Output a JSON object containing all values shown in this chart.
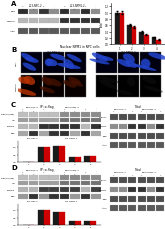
{
  "panel_A": {
    "bar_data": {
      "black_bars": [
        1.0,
        0.62,
        0.38,
        0.22
      ],
      "red_bars": [
        1.0,
        0.55,
        0.3,
        0.15
      ],
      "ylim": [
        0,
        1.3
      ],
      "ylabel": "Fold"
    },
    "wb_labels": [
      "Flag",
      "NPM1m",
      "Actin"
    ],
    "n_lanes": 8,
    "group1": "ZC3-NPC-2",
    "group2": "ZC3-NPM1-2"
  },
  "panel_B": {
    "title": "Nuclear NPM1 in NPC cells",
    "group1": "ZC3-NPC-2",
    "group2": "ZC3-NPM1-2",
    "n_cols": 3,
    "n_rows": 2
  },
  "panel_C": {
    "bar_data": {
      "black_bars": [
        0.05,
        1.0,
        1.1,
        0.38,
        0.42
      ],
      "red_bars": [
        0.05,
        1.0,
        1.1,
        0.38,
        0.42
      ],
      "ylim": [
        0,
        1.4
      ]
    },
    "wb_left_label": "IP: α-flag",
    "wb_right_label": "Total",
    "group1": "ZC3-NPC-2",
    "group2": "ZC3-NPM1-2",
    "left_wb_rows": [
      "DYRK1A(flag)",
      "IgG",
      "NPM1m",
      "Flag"
    ],
    "right_wb_rows": [
      "DYRK1A",
      "NPM1m",
      "Flag",
      "Actin"
    ]
  },
  "panel_D": {
    "bar_data": {
      "black_bars": [
        0.05,
        1.0,
        0.92,
        0.3,
        0.28
      ],
      "red_bars": [
        0.05,
        1.0,
        0.92,
        0.3,
        0.28
      ],
      "ylim": [
        0,
        1.4
      ]
    },
    "wb_left_label": "IP: α-flag",
    "wb_right_label": "Total",
    "group1": "ZC3-NPC-2",
    "group2": "ZC3-NPM1-2",
    "left_wb_rows": [
      "DYRK1A(flag)",
      "IgG",
      "NPM1m",
      "Flag"
    ],
    "right_wb_rows": [
      "DYRK1A",
      "NPM1m",
      "Flag",
      "Actin"
    ]
  },
  "colors": {
    "black_bar": "#1a1a1a",
    "red_bar": "#cc0000",
    "wb_band_dark": "#303030",
    "wb_band_mid": "#606060",
    "wb_band_light": "#909090",
    "wb_bg": "#d8d8d8",
    "microscopy_bg_blue": "#00001a",
    "microscopy_bg_black": "#000000",
    "cell_blue": "#3355cc",
    "cell_red": "#cc2200",
    "panel_bg": "#ffffff"
  }
}
